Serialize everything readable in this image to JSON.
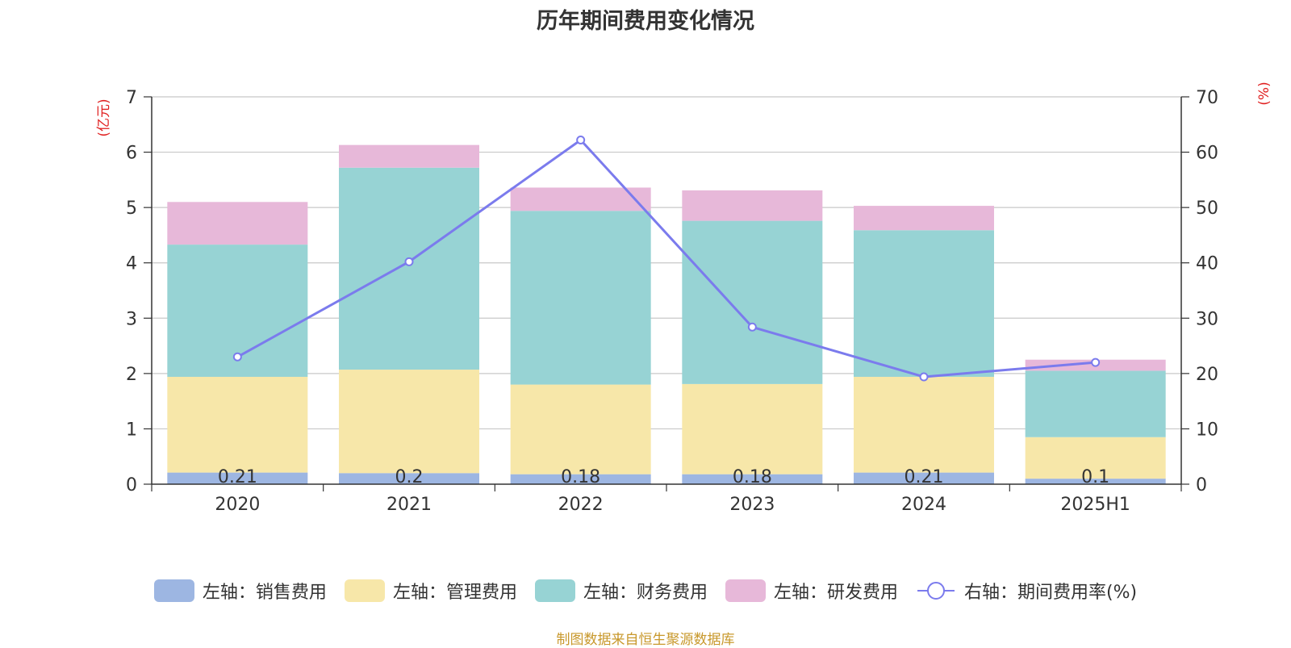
{
  "title": "历年期间费用变化情况",
  "source": "制图数据来自恒生聚源数据库",
  "chart_data": {
    "type": "bar",
    "stacked": true,
    "categories": [
      "2020",
      "2021",
      "2022",
      "2023",
      "2024",
      "2025H1"
    ],
    "left_axis": {
      "unit_label": "(亿元)",
      "ylim": [
        0,
        7
      ],
      "ticks": [
        "0",
        "1",
        "2",
        "3",
        "4",
        "5",
        "6",
        "7"
      ]
    },
    "right_axis": {
      "unit_label": "(%)",
      "ylim": [
        0,
        70
      ],
      "ticks": [
        "0",
        "10",
        "20",
        "30",
        "40",
        "50",
        "60",
        "70"
      ]
    },
    "series": [
      {
        "name": "左轴：销售费用",
        "color": "#9db6e2",
        "axis": "left",
        "values": [
          0.21,
          0.2,
          0.18,
          0.18,
          0.21,
          0.1
        ],
        "labels": [
          "0.21",
          "0.2",
          "0.18",
          "0.18",
          "0.21",
          "0.1"
        ]
      },
      {
        "name": "左轴：管理费用",
        "color": "#f7e7a9",
        "axis": "left",
        "values": [
          1.73,
          1.87,
          1.62,
          1.63,
          1.73,
          0.75
        ]
      },
      {
        "name": "左轴：财务费用",
        "color": "#97d3d4",
        "axis": "left",
        "values": [
          2.39,
          3.65,
          3.14,
          2.95,
          2.65,
          1.2
        ]
      },
      {
        "name": "左轴：研发费用",
        "color": "#e7b8d9",
        "axis": "left",
        "values": [
          0.77,
          0.41,
          0.42,
          0.55,
          0.44,
          0.2
        ]
      },
      {
        "name": "右轴：期间费用率(%)",
        "color": "#7b7bed",
        "axis": "right",
        "type": "line",
        "values": [
          23.0,
          40.2,
          62.2,
          28.4,
          19.4,
          22.0
        ]
      }
    ],
    "grid": true,
    "legend_position": "bottom"
  }
}
